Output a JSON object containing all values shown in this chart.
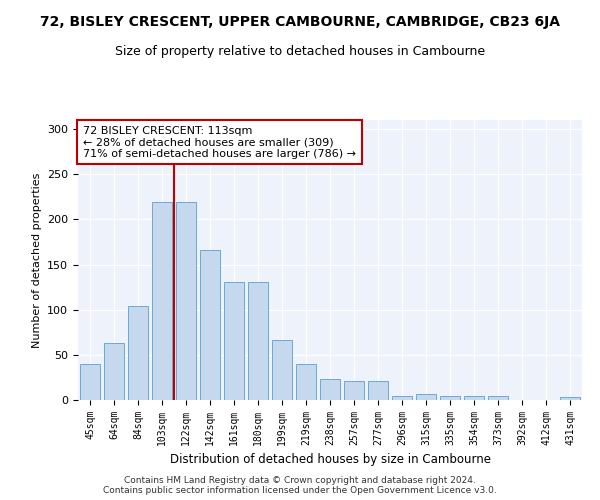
{
  "title": "72, BISLEY CRESCENT, UPPER CAMBOURNE, CAMBRIDGE, CB23 6JA",
  "subtitle": "Size of property relative to detached houses in Cambourne",
  "xlabel": "Distribution of detached houses by size in Cambourne",
  "ylabel": "Number of detached properties",
  "categories": [
    "45sqm",
    "64sqm",
    "84sqm",
    "103sqm",
    "122sqm",
    "142sqm",
    "161sqm",
    "180sqm",
    "199sqm",
    "219sqm",
    "238sqm",
    "257sqm",
    "277sqm",
    "296sqm",
    "315sqm",
    "335sqm",
    "354sqm",
    "373sqm",
    "392sqm",
    "412sqm",
    "431sqm"
  ],
  "values": [
    40,
    63,
    104,
    219,
    219,
    166,
    131,
    131,
    66,
    40,
    23,
    21,
    21,
    4,
    7,
    4,
    4,
    4,
    0,
    0,
    3
  ],
  "bar_color": "#c5d8ee",
  "bar_edge_color": "#6aaad4",
  "vline_x": 3.5,
  "vline_color": "#c00000",
  "annotation_text": "72 BISLEY CRESCENT: 113sqm\n← 28% of detached houses are smaller (309)\n71% of semi-detached houses are larger (786) →",
  "annotation_box_color": "#ffffff",
  "annotation_box_edge": "#c00000",
  "ylim": [
    0,
    310
  ],
  "yticks": [
    0,
    50,
    100,
    150,
    200,
    250,
    300
  ],
  "footer": "Contains HM Land Registry data © Crown copyright and database right 2024.\nContains public sector information licensed under the Open Government Licence v3.0.",
  "bg_color": "#eef2fa",
  "title_fontsize": 10,
  "subtitle_fontsize": 9
}
